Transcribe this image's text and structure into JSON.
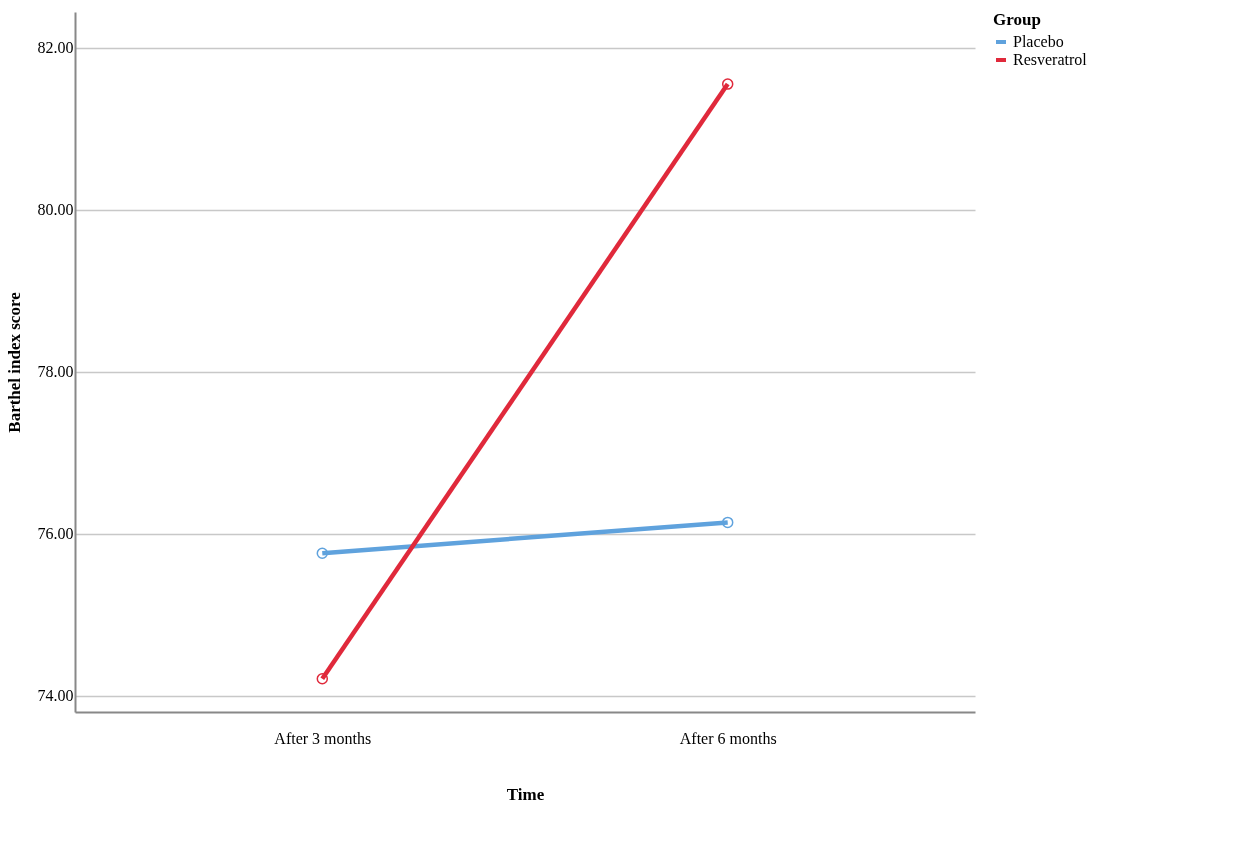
{
  "chart_data": {
    "type": "line",
    "xlabel": "Time",
    "ylabel": "Barthel index score",
    "legend_title": "Group",
    "categories": [
      "After 3 months",
      "After 6 months"
    ],
    "series": [
      {
        "name": "Placebo",
        "color": "#5fa2dd",
        "values": [
          75.76,
          76.14
        ]
      },
      {
        "name": "Resveratrol",
        "color": "#e0293b",
        "values": [
          74.21,
          81.55
        ]
      }
    ],
    "ylim": [
      73.8,
      82.44
    ],
    "yticks": [
      {
        "value": 74,
        "label": "74.00"
      },
      {
        "value": 76,
        "label": "76.00"
      },
      {
        "value": 78,
        "label": "78.00"
      },
      {
        "value": 80,
        "label": "80.00"
      },
      {
        "value": 82,
        "label": "82.00"
      }
    ],
    "grid": "y",
    "legend": "top right",
    "marker": "circle",
    "line_style": "solid"
  }
}
